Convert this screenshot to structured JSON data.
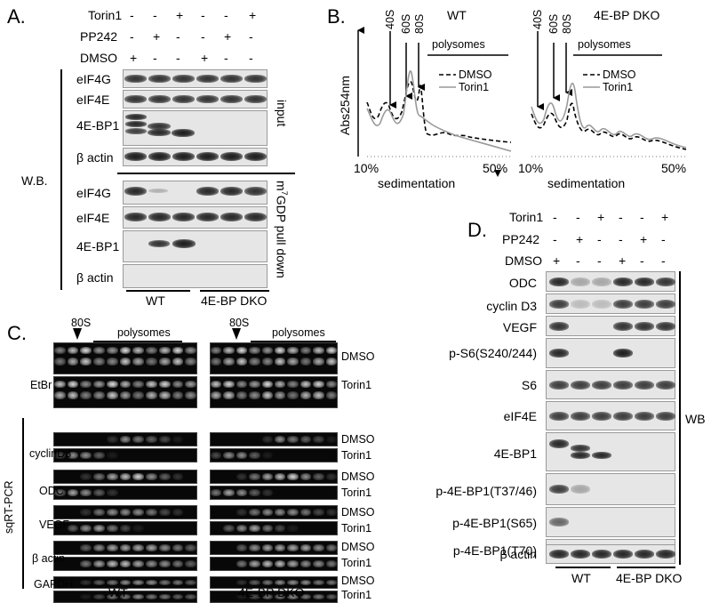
{
  "panels": {
    "a": "A.",
    "b": "B.",
    "c": "C.",
    "d": "D."
  },
  "treatments": {
    "torin1": "Torin1",
    "pp242": "PP242",
    "dmso": "DMSO",
    "marks_torin1": [
      "-",
      "-",
      "+",
      "-",
      "-",
      "+"
    ],
    "marks_pp242": [
      "-",
      "+",
      "-",
      "-",
      "+",
      "-"
    ],
    "marks_dmso": [
      "+",
      "-",
      "-",
      "+",
      "-",
      "-"
    ]
  },
  "panel_a": {
    "wb": "W.B.",
    "input": "input",
    "pulldown": "m7GDP pull down",
    "pulldown_prefix": "m",
    "pulldown_sup": "7",
    "pulldown_rest": "GDP pull down",
    "input_rows": [
      "eIF4G",
      "eIF4E",
      "4E-BP1",
      "β actin"
    ],
    "pulldown_rows": [
      "eIF4G",
      "eIF4E",
      "4E-BP1",
      "β actin"
    ],
    "wt": "WT",
    "dko": "4E-BP DKO"
  },
  "panel_b": {
    "wt_title": "WT",
    "dko_title": "4E-BP DKO",
    "y_label": "Abs254nm",
    "x_label": "sedimentation",
    "x_start": "10%",
    "x_end": "50%",
    "peaks": [
      "40S",
      "60S",
      "80S"
    ],
    "polysomes": "polysomes",
    "legend": [
      "DMSO",
      "Torin1"
    ]
  },
  "panel_c": {
    "s80": "80S",
    "polysomes": "polysomes",
    "etbr": "EtBr",
    "sqrt_pcr": "sqRT-PCR",
    "genes": [
      "cyclinD3",
      "ODC",
      "VEGF",
      "β actin",
      "GAPDH"
    ],
    "conditions": [
      "DMSO",
      "Torin1"
    ],
    "wt": "WT",
    "dko": "4E-BP DKO"
  },
  "panel_d": {
    "rows": [
      "ODC",
      "cyclin D3",
      "VEGF",
      "p-S6(S240/244)",
      "S6",
      "eIF4E",
      "4E-BP1",
      "p-4E-BP1(T37/46)",
      "p-4E-BP1(S65)",
      "p-4E-BP1(T70)",
      "β actin"
    ],
    "wb": "WB",
    "wt": "WT",
    "dko": "4E-BP DKO"
  }
}
